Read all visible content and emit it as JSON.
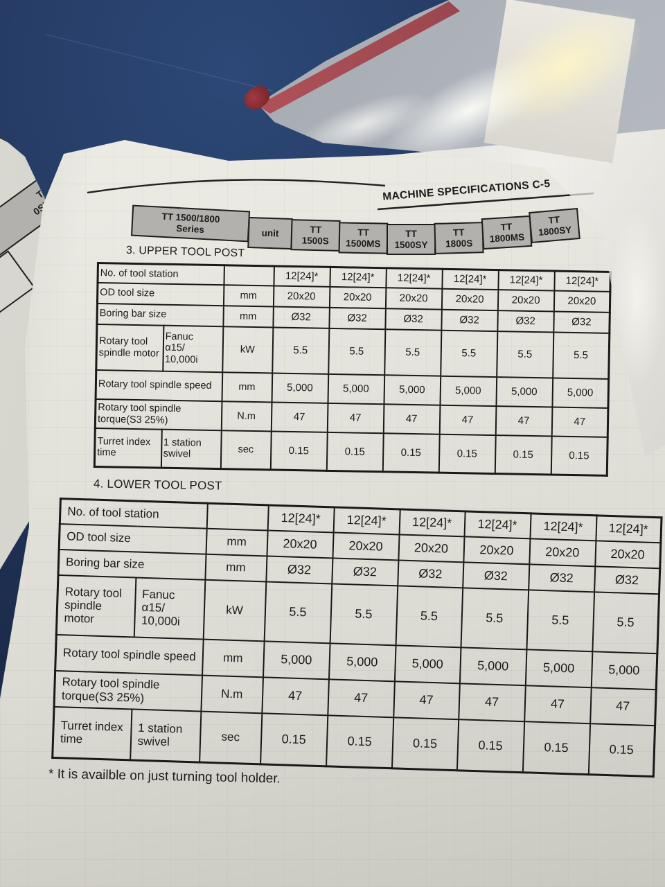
{
  "page_header": {
    "title": "MACHINE SPECIFICATIONS C-5"
  },
  "series_header": {
    "series": {
      "line1": "TT 1500/1800",
      "line2": "Series"
    },
    "unit_label": "unit",
    "models": [
      {
        "line1": "TT",
        "line2": "1500S"
      },
      {
        "line1": "TT",
        "line2": "1500MS"
      },
      {
        "line1": "TT",
        "line2": "1500SY"
      },
      {
        "line1": "TT",
        "line2": "1800S"
      },
      {
        "line1": "TT",
        "line2": "1800MS"
      },
      {
        "line1": "TT",
        "line2": "1800SY"
      }
    ]
  },
  "upper_table": {
    "title": "3. UPPER TOOL POST",
    "rows": [
      {
        "label": "No. of tool station",
        "sublabel": "",
        "unit": "",
        "values": [
          "12[24]*",
          "12[24]*",
          "12[24]*",
          "12[24]*",
          "12[24]*",
          "12[24]*"
        ]
      },
      {
        "label": "OD tool size",
        "sublabel": "",
        "unit": "mm",
        "values": [
          "20x20",
          "20x20",
          "20x20",
          "20x20",
          "20x20",
          "20x20"
        ]
      },
      {
        "label": "Boring bar size",
        "sublabel": "",
        "unit": "mm",
        "values": [
          "Ø32",
          "Ø32",
          "Ø32",
          "Ø32",
          "Ø32",
          "Ø32"
        ]
      },
      {
        "label": "Rotary tool spindle motor",
        "sublabel": "Fanuc\nα15/\n10,000i",
        "unit": "kW",
        "values": [
          "5.5",
          "5.5",
          "5.5",
          "5.5",
          "5.5",
          "5.5"
        ]
      },
      {
        "label": "Rotary tool spindle speed",
        "sublabel": "",
        "unit": "mm",
        "values": [
          "5,000",
          "5,000",
          "5,000",
          "5,000",
          "5,000",
          "5,000"
        ]
      },
      {
        "label": "Rotary tool spindle torque(S3 25%)",
        "sublabel": "",
        "unit": "N.m",
        "values": [
          "47",
          "47",
          "47",
          "47",
          "47",
          "47"
        ]
      },
      {
        "label": "Turret index time",
        "sublabel": "1 station\nswivel",
        "unit": "sec",
        "values": [
          "0.15",
          "0.15",
          "0.15",
          "0.15",
          "0.15",
          "0.15"
        ]
      }
    ]
  },
  "lower_table": {
    "title": "4. LOWER TOOL POST",
    "rows": [
      {
        "label": "No. of tool station",
        "sublabel": "",
        "unit": "",
        "values": [
          "12[24]*",
          "12[24]*",
          "12[24]*",
          "12[24]*",
          "12[24]*",
          "12[24]*"
        ]
      },
      {
        "label": "OD tool size",
        "sublabel": "",
        "unit": "mm",
        "values": [
          "20x20",
          "20x20",
          "20x20",
          "20x20",
          "20x20",
          "20x20"
        ]
      },
      {
        "label": "Boring bar size",
        "sublabel": "",
        "unit": "mm",
        "values": [
          "Ø32",
          "Ø32",
          "Ø32",
          "Ø32",
          "Ø32",
          "Ø32"
        ]
      },
      {
        "label": "Rotary tool spindle motor",
        "sublabel": "Fanuc\nα15/\n10,000i",
        "unit": "kW",
        "values": [
          "5.5",
          "5.5",
          "5.5",
          "5.5",
          "5.5",
          "5.5"
        ]
      },
      {
        "label": "Rotary tool spindle speed",
        "sublabel": "",
        "unit": "mm",
        "values": [
          "5,000",
          "5,000",
          "5,000",
          "5,000",
          "5,000",
          "5,000"
        ]
      },
      {
        "label": "Rotary tool spindle torque(S3 25%)",
        "sublabel": "",
        "unit": "N.m",
        "values": [
          "47",
          "47",
          "47",
          "47",
          "47",
          "47"
        ]
      },
      {
        "label": "Turret index time",
        "sublabel": "1 station\nswivel",
        "unit": "sec",
        "values": [
          "0.15",
          "0.15",
          "0.15",
          "0.15",
          "0.15",
          "0.15"
        ]
      }
    ]
  },
  "footnote": "* It is availble on just turning tool holder.",
  "facing_page_fragment": {
    "line1": "T",
    "line2": "0SY"
  },
  "colors": {
    "paper": "#ebeae3",
    "desk_blue": "#22365c",
    "header_cell_gray": "#b2b1ad",
    "table_ink": "#191919",
    "bag_seal_red": "#b04048"
  }
}
